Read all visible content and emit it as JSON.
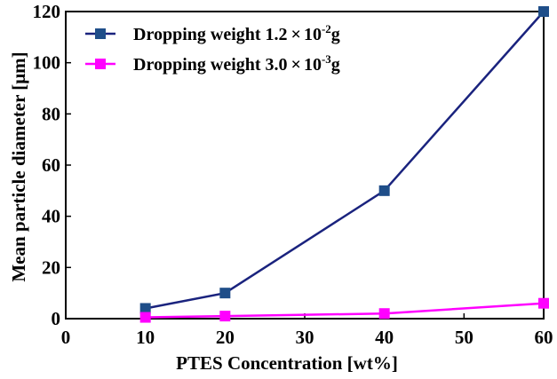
{
  "chart_data": {
    "type": "line",
    "title": "",
    "xlabel": "PTES Concentration [wt%]",
    "ylabel": "Mean particle diameter [μm]",
    "xlim": [
      0,
      60
    ],
    "ylim": [
      0,
      120
    ],
    "xticks": [
      0,
      10,
      20,
      30,
      40,
      50,
      60
    ],
    "yticks": [
      0,
      20,
      40,
      60,
      80,
      100,
      120
    ],
    "grid": false,
    "legend_position": "top-left",
    "series": [
      {
        "name": "Dropping weight 1.2×10⁻²g",
        "label_main": "Dropping weight 1.2",
        "label_times": "×",
        "label_base": "10",
        "label_exp": "-2",
        "label_unit": "g",
        "color": "#1a237e",
        "marker_color": "#1f4e89",
        "marker": "square",
        "x": [
          10,
          20,
          40,
          60
        ],
        "y": [
          4,
          10,
          50,
          120
        ]
      },
      {
        "name": "Dropping weight 3.0×10⁻³g",
        "label_main": "Dropping weight 3.0",
        "label_times": "×",
        "label_base": "10",
        "label_exp": "-3",
        "label_unit": "g",
        "color": "#ff00ff",
        "marker_color": "#ff00ff",
        "marker": "square",
        "x": [
          10,
          20,
          40,
          60
        ],
        "y": [
          0.5,
          1,
          2,
          6
        ]
      }
    ]
  }
}
